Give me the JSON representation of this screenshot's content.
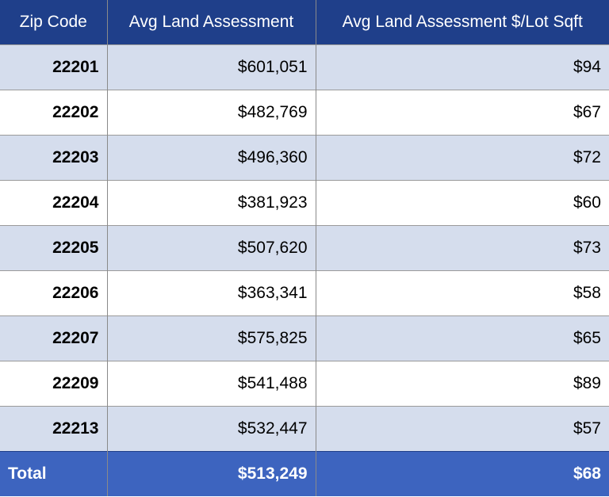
{
  "table": {
    "headers": [
      "Zip Code",
      "Avg Land Assessment",
      "Avg Land Assessment $/Lot Sqft"
    ],
    "rows": [
      [
        "22201",
        "$601,051",
        "$94"
      ],
      [
        "22202",
        "$482,769",
        "$67"
      ],
      [
        "22203",
        "$496,360",
        "$72"
      ],
      [
        "22204",
        "$381,923",
        "$60"
      ],
      [
        "22205",
        "$507,620",
        "$73"
      ],
      [
        "22206",
        "$363,341",
        "$58"
      ],
      [
        "22207",
        "$575,825",
        "$65"
      ],
      [
        "22209",
        "$541,488",
        "$89"
      ],
      [
        "22213",
        "$532,447",
        "$57"
      ]
    ],
    "total": [
      "Total",
      "$513,249",
      "$68"
    ]
  },
  "colors": {
    "header_bg": "#1f3f8a",
    "row_band": "#d5dded",
    "total_bg": "#3d64bf",
    "header_text": "#ffffff"
  }
}
